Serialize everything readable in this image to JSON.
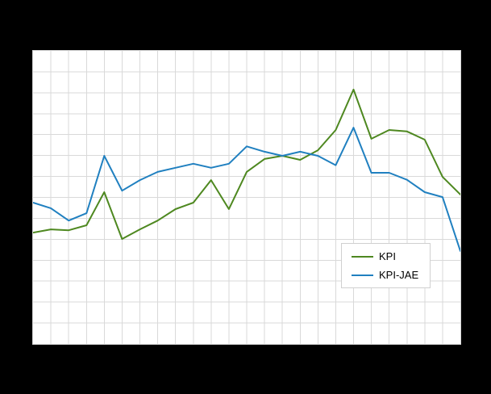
{
  "figure": {
    "background_color": "#000000",
    "plot_background_color": "#ffffff",
    "grid_color": "#d9d9d9"
  },
  "legend": {
    "items": [
      {
        "label": "KPI",
        "color": "#4e8820"
      },
      {
        "label": "KPI-JAE",
        "color": "#2080c0"
      }
    ]
  },
  "chart_data": {
    "type": "line",
    "title": "",
    "xlabel": "",
    "ylabel": "",
    "x": [
      1,
      2,
      3,
      4,
      5,
      6,
      7,
      8,
      9,
      10,
      11,
      12,
      13,
      14,
      15,
      16,
      17,
      18,
      19,
      20,
      21,
      22,
      23,
      24,
      25
    ],
    "series": [
      {
        "name": "KPI",
        "color": "#4e8820",
        "values": [
          3.8,
          3.91,
          3.88,
          4.05,
          5.18,
          3.58,
          3.91,
          4.21,
          4.6,
          4.82,
          5.59,
          4.6,
          5.87,
          6.31,
          6.42,
          6.28,
          6.61,
          7.3,
          8.68,
          7.0,
          7.3,
          7.25,
          6.97,
          5.7,
          5.1
        ]
      },
      {
        "name": "KPI-JAE",
        "color": "#2080c0",
        "values": [
          4.82,
          4.63,
          4.21,
          4.46,
          6.42,
          5.23,
          5.59,
          5.87,
          6.01,
          6.15,
          6.01,
          6.15,
          6.74,
          6.56,
          6.42,
          6.56,
          6.42,
          6.1,
          7.38,
          5.84,
          5.84,
          5.6,
          5.18,
          5.01,
          3.17
        ]
      }
    ],
    "ylim": [
      0,
      10
    ],
    "grid": true,
    "grid_columns": 24,
    "grid_rows": 14,
    "legend_position": "inside-right",
    "axis_tick_labels_visible": false
  }
}
